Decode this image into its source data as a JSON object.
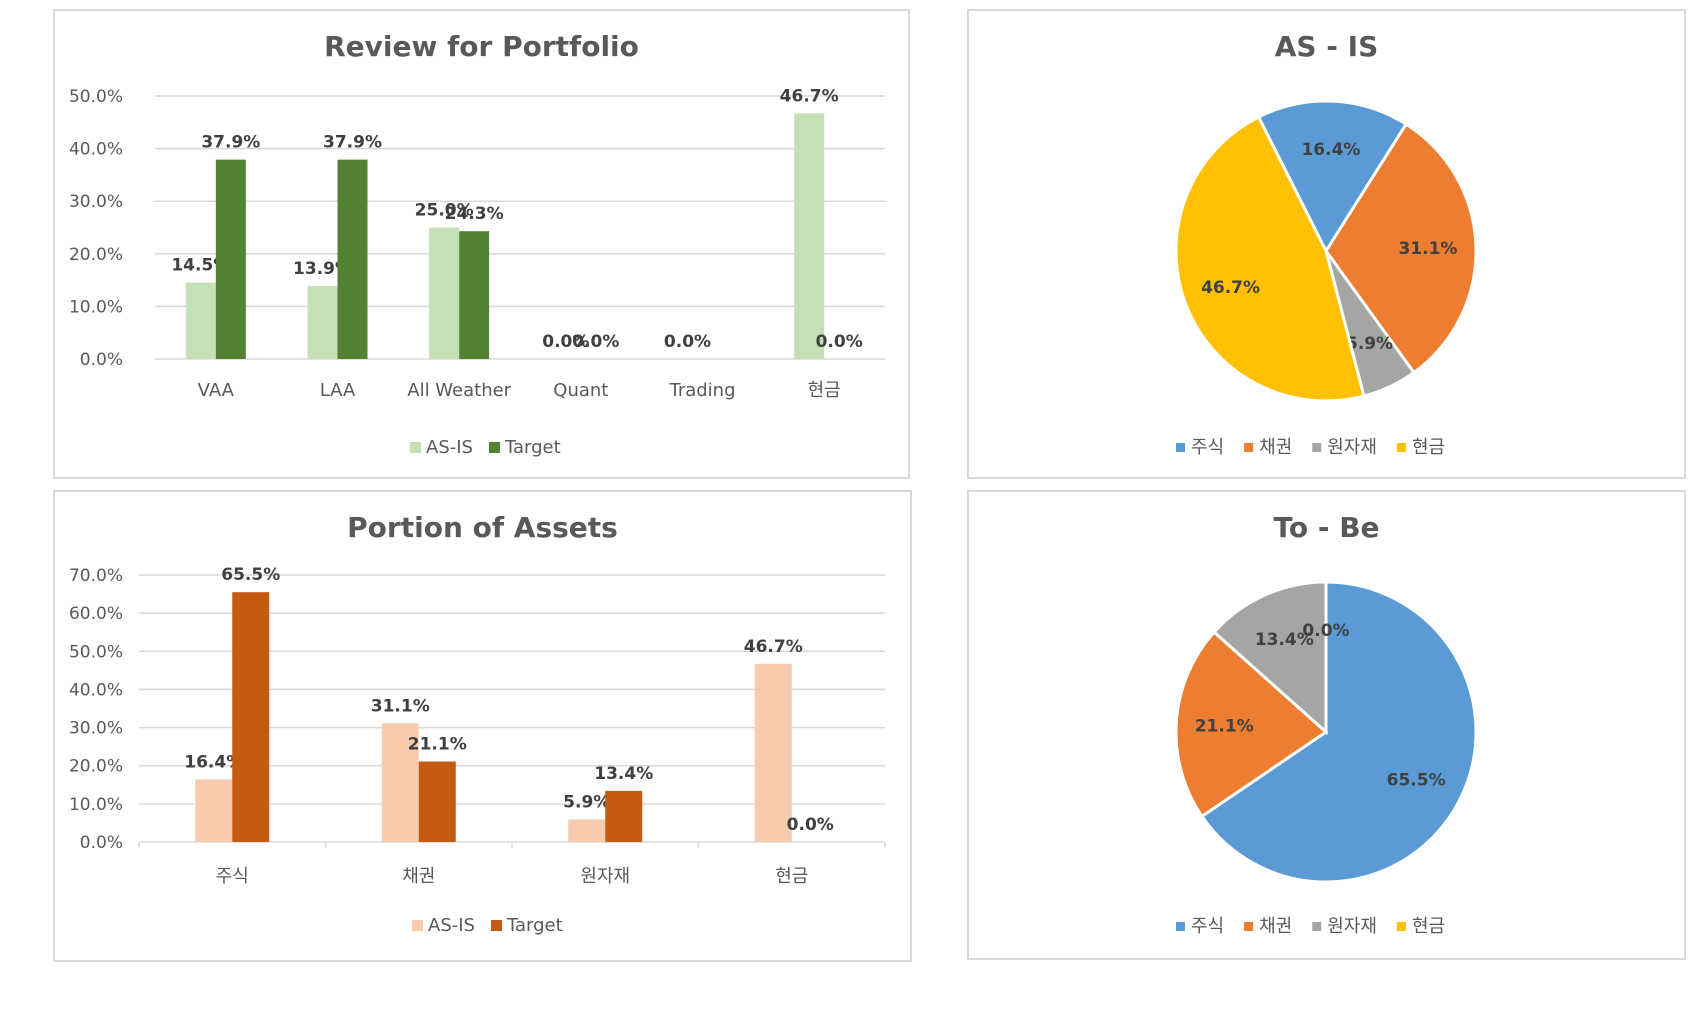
{
  "chart_data": [
    {
      "id": "review",
      "type": "bar",
      "title": "Review for Portfolio",
      "categories": [
        "VAA",
        "LAA",
        "All Weather",
        "Quant",
        "Trading",
        "현금"
      ],
      "series": [
        {
          "name": "AS-IS",
          "values": [
            14.5,
            13.9,
            25.0,
            0.0,
            0.0,
            46.7
          ],
          "color": "#c5e0b4",
          "labels": [
            "14.5%",
            "13.9%",
            "25.0%",
            "0.0%",
            "0.0%",
            "46.7%"
          ]
        },
        {
          "name": "Target",
          "values": [
            37.9,
            37.9,
            24.3,
            0.0,
            null,
            0.0
          ],
          "color": "#548235",
          "labels": [
            "37.9%",
            "37.9%",
            "24.3%",
            "0.0%",
            "",
            "0.0%"
          ]
        }
      ],
      "yticks": [
        "0.0%",
        "10.0%",
        "20.0%",
        "30.0%",
        "40.0%",
        "50.0%"
      ],
      "ylim": [
        0,
        50
      ],
      "legend": "bottom"
    },
    {
      "id": "asis",
      "type": "pie",
      "title": "AS - IS",
      "slices": [
        {
          "name": "주식",
          "value": 16.4,
          "label": "16.4%",
          "color": "#5b9bd5"
        },
        {
          "name": "채권",
          "value": 31.1,
          "label": "31.1%",
          "color": "#ed7d31"
        },
        {
          "name": "원자재",
          "value": 5.9,
          "label": "5.9%",
          "color": "#a5a5a5"
        },
        {
          "name": "현금",
          "value": 46.7,
          "label": "46.7%",
          "color": "#ffc000"
        }
      ],
      "legend": "bottom"
    },
    {
      "id": "portion",
      "type": "bar",
      "title": "Portion of Assets",
      "categories": [
        "주식",
        "채권",
        "원자재",
        "현금"
      ],
      "series": [
        {
          "name": "AS-IS",
          "values": [
            16.4,
            31.1,
            5.9,
            46.7
          ],
          "color": "#f8cbad",
          "labels": [
            "16.4%",
            "31.1%",
            "5.9%",
            "46.7%"
          ]
        },
        {
          "name": "Target",
          "values": [
            65.5,
            21.1,
            13.4,
            0.0
          ],
          "color": "#c55a11",
          "labels": [
            "65.5%",
            "21.1%",
            "13.4%",
            "0.0%"
          ]
        }
      ],
      "yticks": [
        "0.0%",
        "10.0%",
        "20.0%",
        "30.0%",
        "40.0%",
        "50.0%",
        "60.0%",
        "70.0%"
      ],
      "ylim": [
        0,
        70
      ],
      "legend": "bottom"
    },
    {
      "id": "tobe",
      "type": "pie",
      "title": "To - Be",
      "slices": [
        {
          "name": "주식",
          "value": 65.5,
          "label": "65.5%",
          "color": "#5b9bd5"
        },
        {
          "name": "채권",
          "value": 21.1,
          "label": "21.1%",
          "color": "#ed7d31"
        },
        {
          "name": "원자재",
          "value": 13.4,
          "label": "13.4%",
          "color": "#a5a5a5"
        },
        {
          "name": "현금",
          "value": 0.0,
          "label": "0.0%",
          "color": "#ffc000"
        }
      ],
      "legend": "bottom"
    }
  ]
}
